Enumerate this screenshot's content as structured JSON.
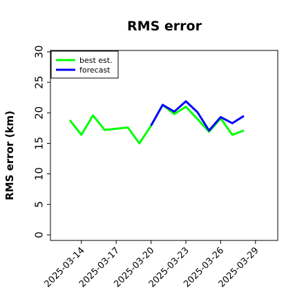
{
  "chart_data": {
    "type": "line",
    "title": "RMS error",
    "xlabel": "",
    "ylabel": "RMS error (km)",
    "ylim": [
      0,
      30
    ],
    "xlim": [
      "2025-03-11T08:00",
      "2025-03-30T22:00"
    ],
    "yticks": [
      0,
      5,
      10,
      15,
      20,
      25,
      30
    ],
    "xticks": [
      "2025-03-14",
      "2025-03-17",
      "2025-03-20",
      "2025-03-23",
      "2025-03-26",
      "2025-03-29"
    ],
    "highlighted_xtick": "2025-03-20",
    "highlight_color": "#228B22",
    "grid": false,
    "legend": {
      "position": "top-left",
      "entries": [
        "best est.",
        "forecast"
      ]
    },
    "series": [
      {
        "name": "best est.",
        "color": "#00ff00",
        "x": [
          "2025-03-13",
          "2025-03-14",
          "2025-03-15",
          "2025-03-16",
          "2025-03-18",
          "2025-03-19",
          "2025-03-20",
          "2025-03-21",
          "2025-03-22",
          "2025-03-23",
          "2025-03-24",
          "2025-03-25",
          "2025-03-26",
          "2025-03-27",
          "2025-03-28"
        ],
        "y": [
          18.8,
          16.4,
          19.6,
          17.2,
          17.6,
          15.0,
          17.9,
          21.3,
          19.8,
          21.0,
          19.0,
          16.9,
          19.1,
          16.4,
          17.1
        ]
      },
      {
        "name": "forecast",
        "color": "#0000ff",
        "x": [
          "2025-03-20",
          "2025-03-21",
          "2025-03-22",
          "2025-03-23",
          "2025-03-24",
          "2025-03-25",
          "2025-03-26",
          "2025-03-27",
          "2025-03-28"
        ],
        "y": [
          17.9,
          21.3,
          20.2,
          21.9,
          20.1,
          17.1,
          19.3,
          18.3,
          19.5
        ]
      }
    ]
  }
}
